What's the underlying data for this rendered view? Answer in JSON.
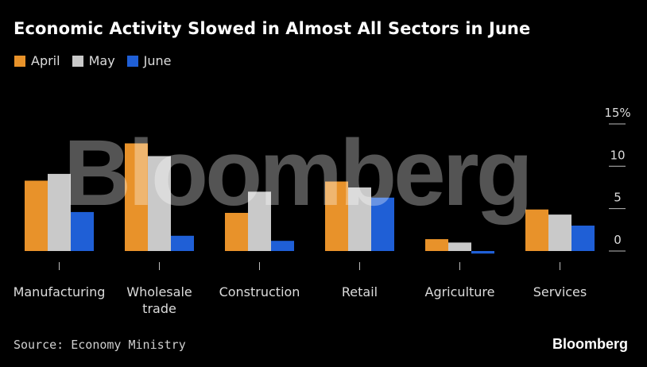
{
  "title": "Economic Activity Slowed in Almost All Sectors in June",
  "source": "Source: Economy Ministry",
  "brand": "Bloomberg",
  "watermark": "Bloomberg",
  "colors": {
    "background": "#000000",
    "april": "#E8922A",
    "may": "#C9C9C9",
    "june": "#1F5FD6"
  },
  "chart_data": {
    "type": "bar",
    "title": "Economic Activity Slowed in Almost All Sectors in June",
    "categories": [
      "Manufacturing",
      "Wholesale trade",
      "Construction",
      "Retail",
      "Agriculture",
      "Services"
    ],
    "category_lines": [
      [
        "Manufacturing"
      ],
      [
        "Wholesale",
        "trade"
      ],
      [
        "Construction"
      ],
      [
        "Retail"
      ],
      [
        "Agriculture"
      ],
      [
        "Services"
      ]
    ],
    "series": [
      {
        "name": "April",
        "color": "#E8922A",
        "values": [
          8.3,
          12.7,
          4.5,
          8.2,
          1.4,
          4.9
        ]
      },
      {
        "name": "May",
        "color": "#C9C9C9",
        "values": [
          9.1,
          11.2,
          7.0,
          7.5,
          1.0,
          4.3
        ]
      },
      {
        "name": "June",
        "color": "#1F5FD6",
        "values": [
          4.6,
          1.8,
          1.2,
          6.3,
          -0.3,
          3.0
        ]
      }
    ],
    "yticks": [
      0,
      5,
      10,
      15
    ],
    "ytick_labels": [
      "0",
      "5",
      "10",
      "15%"
    ],
    "ylim": [
      -0.5,
      15
    ],
    "y_axis_side": "right",
    "legend_position": "top-left",
    "grid": false,
    "xlabel": "",
    "ylabel": ""
  }
}
